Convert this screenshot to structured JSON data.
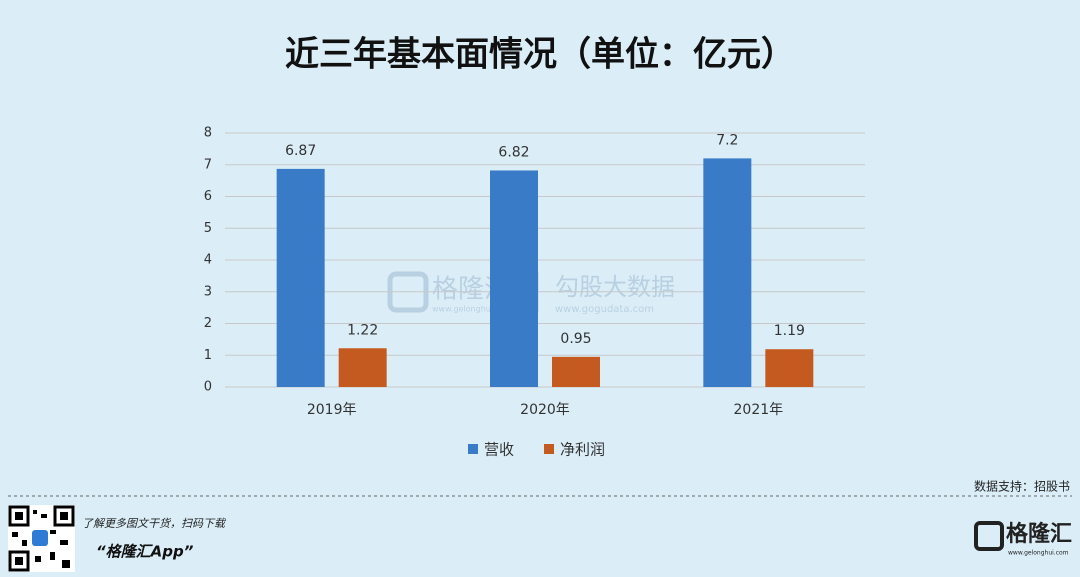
{
  "chart_data": {
    "type": "bar",
    "title": "近三年基本面情况（单位：亿元）",
    "categories": [
      "2019年",
      "2020年",
      "2021年"
    ],
    "series": [
      {
        "name": "营收",
        "color": "#3a7bc8",
        "values": [
          6.87,
          6.82,
          7.2
        ]
      },
      {
        "name": "净利润",
        "color": "#c55a21",
        "values": [
          1.22,
          0.95,
          1.19
        ]
      }
    ],
    "ylim": [
      0,
      8
    ],
    "yticks": [
      0,
      1,
      2,
      3,
      4,
      5,
      6,
      7,
      8
    ],
    "grid": true,
    "legend": "bottom"
  },
  "watermark": {
    "brand": "格隆汇",
    "brand_url": "www.gelonghui.com",
    "data_brand": "勾股大数据",
    "data_url": "www.gogudata.com"
  },
  "source": "数据支持：招股书",
  "footer": {
    "prompt": "了解更多图文干货，扫码下载",
    "app": "“格隆汇App”",
    "logo": "格隆汇",
    "logo_url": "www.gelonghui.com"
  }
}
